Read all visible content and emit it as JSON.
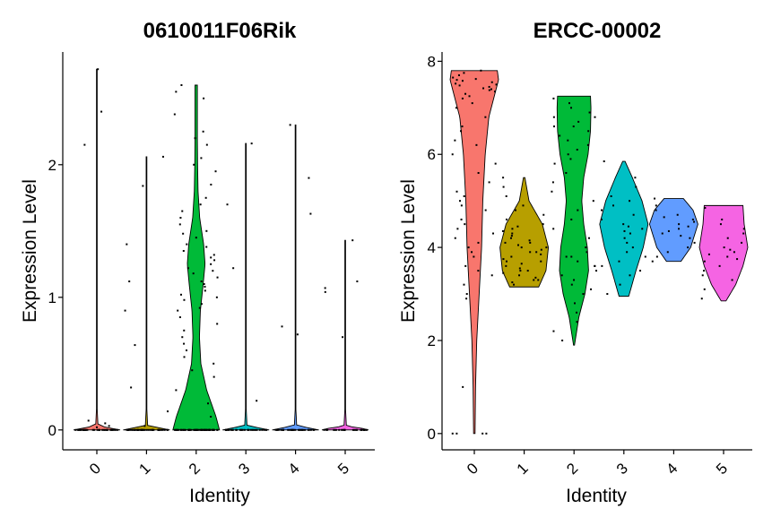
{
  "chart_data": [
    {
      "type": "violin",
      "title": "0610011F06Rik",
      "xlabel": "Identity",
      "ylabel": "Expression Level",
      "categories": [
        "0",
        "1",
        "2",
        "3",
        "4",
        "5"
      ],
      "ylim": [
        -0.15,
        2.85
      ],
      "yticks": [
        0,
        1,
        2
      ],
      "ytick_labels": [
        "0",
        "1",
        "2"
      ],
      "colors": [
        "#F8766D",
        "#B79F00",
        "#00BA38",
        "#00BFC4",
        "#619CFF",
        "#F564E3"
      ],
      "violins": [
        {
          "category": "0",
          "min": 0,
          "max": 2.72,
          "profile": [
            [
              0,
              1.0
            ],
            [
              0.01,
              0.8
            ],
            [
              0.03,
              0.05
            ],
            [
              0.2,
              0.003
            ],
            [
              1.0,
              0.003
            ],
            [
              2.72,
              0.003
            ]
          ]
        },
        {
          "category": "1",
          "min": 0,
          "max": 2.06,
          "profile": [
            [
              0,
              1.0
            ],
            [
              0.01,
              0.8
            ],
            [
              0.03,
              0.05
            ],
            [
              0.2,
              0.003
            ],
            [
              1.0,
              0.003
            ],
            [
              2.06,
              0.003
            ]
          ]
        },
        {
          "category": "2",
          "min": 0,
          "max": 2.6,
          "profile": [
            [
              0,
              1.0
            ],
            [
              0.1,
              0.85
            ],
            [
              0.3,
              0.45
            ],
            [
              0.5,
              0.2
            ],
            [
              0.7,
              0.14
            ],
            [
              0.9,
              0.18
            ],
            [
              1.1,
              0.3
            ],
            [
              1.25,
              0.38
            ],
            [
              1.4,
              0.32
            ],
            [
              1.6,
              0.15
            ],
            [
              1.8,
              0.08
            ],
            [
              2.0,
              0.06
            ],
            [
              2.2,
              0.05
            ],
            [
              2.4,
              0.05
            ],
            [
              2.6,
              0.05
            ]
          ]
        },
        {
          "category": "3",
          "min": 0,
          "max": 2.16,
          "profile": [
            [
              0,
              1.0
            ],
            [
              0.01,
              0.8
            ],
            [
              0.03,
              0.05
            ],
            [
              0.2,
              0.003
            ],
            [
              1.0,
              0.003
            ],
            [
              2.16,
              0.003
            ]
          ]
        },
        {
          "category": "4",
          "min": 0,
          "max": 2.3,
          "profile": [
            [
              0,
              1.0
            ],
            [
              0.01,
              0.8
            ],
            [
              0.03,
              0.05
            ],
            [
              0.2,
              0.003
            ],
            [
              1.0,
              0.003
            ],
            [
              2.3,
              0.003
            ]
          ]
        },
        {
          "category": "5",
          "min": 0,
          "max": 1.43,
          "profile": [
            [
              0,
              1.0
            ],
            [
              0.01,
              0.8
            ],
            [
              0.03,
              0.05
            ],
            [
              0.2,
              0.003
            ],
            [
              1.0,
              0.003
            ],
            [
              1.43,
              0.003
            ]
          ]
        }
      ],
      "points": [
        {
          "category": "0",
          "n_zero": 35,
          "nonzero": [
            2.72,
            2.4,
            2.15,
            0.07,
            0.05,
            0.03,
            0.02
          ]
        },
        {
          "category": "1",
          "n_zero": 40,
          "nonzero": [
            2.06,
            1.84,
            1.4,
            1.12,
            0.9,
            0.64,
            0.32,
            0.14,
            0.03
          ]
        },
        {
          "category": "2",
          "n_zero": 60,
          "nonzero": [
            2.6,
            2.55,
            2.5,
            2.38,
            2.25,
            2.2,
            2.15,
            2.05,
            2.0,
            1.95,
            1.85,
            1.75,
            1.7,
            1.65,
            1.6,
            1.55,
            1.5,
            1.48,
            1.45,
            1.4,
            1.38,
            1.35,
            1.32,
            1.3,
            1.28,
            1.25,
            1.22,
            1.2,
            1.18,
            1.15,
            1.12,
            1.1,
            1.08,
            1.05,
            1.02,
            1.0,
            0.98,
            0.95,
            0.92,
            0.9,
            0.85,
            0.8,
            0.75,
            0.7,
            0.65,
            0.6,
            0.55,
            0.5,
            0.45,
            0.4,
            0.3,
            0.2,
            0.1
          ]
        },
        {
          "category": "3",
          "n_zero": 30,
          "nonzero": [
            2.16,
            1.7,
            1.22,
            0.22
          ]
        },
        {
          "category": "4",
          "n_zero": 30,
          "nonzero": [
            2.3,
            1.9,
            1.63,
            0.78,
            0.72
          ]
        },
        {
          "category": "5",
          "n_zero": 25,
          "nonzero": [
            1.43,
            1.12,
            1.07,
            1.04,
            0.7
          ]
        }
      ]
    },
    {
      "type": "violin",
      "title": "ERCC-00002",
      "xlabel": "Identity",
      "ylabel": "Expression Level",
      "categories": [
        "0",
        "1",
        "2",
        "3",
        "4",
        "5"
      ],
      "ylim": [
        -0.35,
        8.2
      ],
      "yticks": [
        0,
        2,
        4,
        6,
        8
      ],
      "ytick_labels": [
        "0",
        "2",
        "4",
        "6",
        "8"
      ],
      "colors": [
        "#F8766D",
        "#B79F00",
        "#00BA38",
        "#00BFC4",
        "#619CFF",
        "#F564E3"
      ],
      "violins": [
        {
          "category": "0",
          "min": 0,
          "max": 7.8,
          "profile": [
            [
              0,
              0.03
            ],
            [
              1.0,
              0.05
            ],
            [
              2.0,
              0.1
            ],
            [
              3.0,
              0.2
            ],
            [
              4.0,
              0.3
            ],
            [
              5.0,
              0.35
            ],
            [
              6.0,
              0.45
            ],
            [
              6.8,
              0.6
            ],
            [
              7.3,
              0.85
            ],
            [
              7.6,
              1.0
            ],
            [
              7.8,
              0.95
            ]
          ]
        },
        {
          "category": "1",
          "min": 3.15,
          "max": 5.5,
          "profile": [
            [
              3.15,
              0.6
            ],
            [
              3.5,
              0.9
            ],
            [
              4.0,
              1.0
            ],
            [
              4.5,
              0.75
            ],
            [
              5.0,
              0.2
            ],
            [
              5.5,
              0.03
            ]
          ]
        },
        {
          "category": "2",
          "min": 1.9,
          "max": 7.25,
          "profile": [
            [
              1.9,
              0.02
            ],
            [
              2.5,
              0.2
            ],
            [
              3.0,
              0.45
            ],
            [
              3.5,
              0.6
            ],
            [
              4.0,
              0.55
            ],
            [
              4.5,
              0.4
            ],
            [
              5.0,
              0.32
            ],
            [
              5.5,
              0.4
            ],
            [
              6.0,
              0.58
            ],
            [
              6.5,
              0.68
            ],
            [
              7.0,
              0.7
            ],
            [
              7.25,
              0.68
            ]
          ]
        },
        {
          "category": "3",
          "min": 2.95,
          "max": 5.85,
          "profile": [
            [
              2.95,
              0.2
            ],
            [
              3.5,
              0.5
            ],
            [
              4.0,
              0.8
            ],
            [
              4.5,
              1.0
            ],
            [
              5.0,
              0.75
            ],
            [
              5.5,
              0.35
            ],
            [
              5.85,
              0.05
            ]
          ]
        },
        {
          "category": "4",
          "min": 3.7,
          "max": 5.05,
          "profile": [
            [
              3.7,
              0.3
            ],
            [
              4.0,
              0.7
            ],
            [
              4.5,
              1.0
            ],
            [
              4.8,
              0.8
            ],
            [
              5.05,
              0.4
            ]
          ]
        },
        {
          "category": "5",
          "min": 2.85,
          "max": 4.9,
          "profile": [
            [
              2.85,
              0.1
            ],
            [
              3.2,
              0.5
            ],
            [
              3.6,
              0.8
            ],
            [
              4.0,
              1.0
            ],
            [
              4.5,
              0.85
            ],
            [
              4.9,
              0.8
            ]
          ]
        }
      ],
      "points": [
        {
          "category": "0",
          "n_zero": 4,
          "nonzero": [
            7.8,
            7.75,
            7.7,
            7.65,
            7.62,
            7.6,
            7.58,
            7.55,
            7.52,
            7.5,
            7.48,
            7.45,
            7.42,
            7.4,
            7.38,
            7.35,
            7.3,
            7.25,
            7.2,
            7.1,
            7.0,
            6.8,
            6.6,
            6.5,
            6.3,
            6.2,
            6.0,
            5.8,
            5.6,
            5.4,
            5.2,
            5.1,
            5.0,
            4.9,
            4.8,
            4.6,
            4.5,
            4.4,
            4.3,
            4.2,
            4.1,
            4.0,
            3.9,
            3.8,
            3.6,
            3.5,
            3.4,
            3.2,
            3.0,
            2.9,
            1.0
          ]
        },
        {
          "category": "1",
          "n_zero": 0,
          "nonzero": [
            5.5,
            5.3,
            5.1,
            4.9,
            4.8,
            4.7,
            4.6,
            4.5,
            4.45,
            4.4,
            4.35,
            4.3,
            4.25,
            4.2,
            4.15,
            4.1,
            4.05,
            4.0,
            3.95,
            3.9,
            3.85,
            3.8,
            3.75,
            3.7,
            3.65,
            3.6,
            3.55,
            3.5,
            3.45,
            3.4,
            3.35,
            3.3,
            3.25,
            3.2,
            3.3,
            3.5,
            3.7,
            3.9,
            4.0,
            4.1
          ]
        },
        {
          "category": "2",
          "n_zero": 0,
          "nonzero": [
            7.2,
            7.1,
            7.0,
            6.9,
            6.8,
            6.7,
            6.6,
            6.5,
            6.4,
            6.3,
            6.2,
            6.1,
            6.0,
            5.9,
            5.8,
            5.6,
            5.4,
            5.2,
            5.0,
            4.8,
            4.6,
            4.4,
            4.2,
            4.0,
            3.9,
            3.8,
            3.7,
            3.6,
            3.5,
            3.4,
            3.3,
            3.2,
            3.1,
            3.0,
            2.8,
            2.6,
            2.4,
            2.2,
            2.0,
            6.8,
            6.6,
            3.6,
            3.8
          ]
        },
        {
          "category": "3",
          "n_zero": 0,
          "nonzero": [
            5.85,
            5.5,
            5.3,
            5.1,
            5.0,
            4.9,
            4.8,
            4.7,
            4.6,
            4.5,
            4.45,
            4.4,
            4.35,
            4.3,
            4.2,
            4.1,
            4.0,
            3.9,
            3.8,
            3.7,
            3.6,
            3.5,
            3.4,
            3.2,
            3.0
          ]
        },
        {
          "category": "4",
          "n_zero": 0,
          "nonzero": [
            5.05,
            4.9,
            4.8,
            4.7,
            4.65,
            4.6,
            4.55,
            4.5,
            4.45,
            4.4,
            4.35,
            4.3,
            4.25,
            4.2,
            4.1,
            4.0,
            3.9,
            3.8,
            3.7
          ]
        },
        {
          "category": "5",
          "n_zero": 0,
          "nonzero": [
            4.85,
            4.6,
            4.5,
            4.4,
            4.3,
            4.2,
            4.1,
            4.0,
            3.95,
            3.9,
            3.85,
            3.8,
            3.75,
            3.7,
            3.6,
            3.5,
            3.4,
            3.3,
            3.1,
            2.9
          ]
        }
      ]
    }
  ]
}
